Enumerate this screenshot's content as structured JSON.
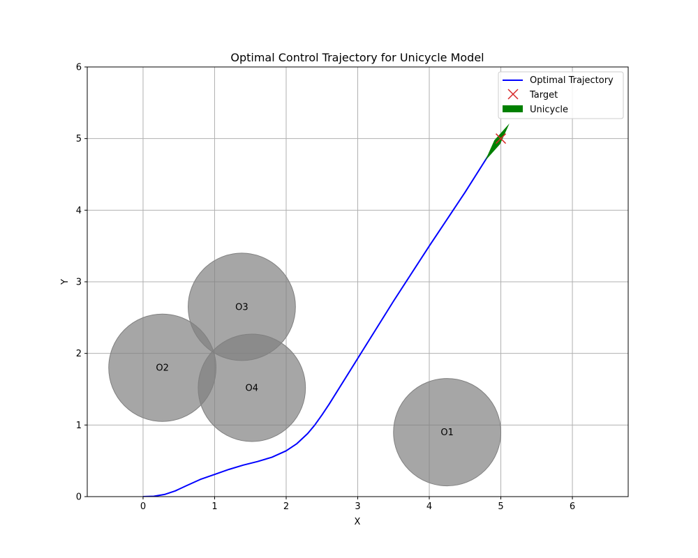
{
  "chart_data": {
    "type": "line",
    "title": "Optimal Control Trajectory for Unicycle Model",
    "xlabel": "X",
    "ylabel": "Y",
    "xlim": [
      -0.78,
      6.78
    ],
    "ylim": [
      0,
      6
    ],
    "xticks": [
      "0",
      "1",
      "2",
      "3",
      "4",
      "5",
      "6"
    ],
    "yticks": [
      "0",
      "1",
      "2",
      "3",
      "4",
      "5",
      "6"
    ],
    "grid": true,
    "legend_position": "top-right",
    "legend": {
      "trajectory": "Optimal Trajectory",
      "target": "Target",
      "unicycle": "Unicycle"
    },
    "trajectory": {
      "color": "#0000ff",
      "points": [
        [
          0,
          0
        ],
        [
          0.15,
          0.005
        ],
        [
          0.3,
          0.03
        ],
        [
          0.45,
          0.08
        ],
        [
          0.6,
          0.15
        ],
        [
          0.8,
          0.24
        ],
        [
          1.0,
          0.31
        ],
        [
          1.2,
          0.38
        ],
        [
          1.4,
          0.44
        ],
        [
          1.6,
          0.49
        ],
        [
          1.8,
          0.55
        ],
        [
          2.0,
          0.64
        ],
        [
          2.15,
          0.74
        ],
        [
          2.3,
          0.88
        ],
        [
          2.4,
          1.0
        ],
        [
          2.5,
          1.14
        ],
        [
          2.6,
          1.29
        ],
        [
          3.0,
          1.93
        ],
        [
          3.5,
          2.73
        ],
        [
          4.0,
          3.5
        ],
        [
          4.5,
          4.25
        ],
        [
          4.88,
          4.85
        ],
        [
          5.0,
          5.0
        ]
      ]
    },
    "target": {
      "x": 5.0,
      "y": 5.0,
      "color": "#d62728"
    },
    "unicycle": {
      "x": 4.95,
      "y": 4.95,
      "heading_deg": 57,
      "color": "#008000"
    },
    "obstacles": [
      {
        "label": "O1",
        "x": 4.25,
        "y": 0.9,
        "r": 0.75
      },
      {
        "label": "O2",
        "x": 0.27,
        "y": 1.8,
        "r": 0.75
      },
      {
        "label": "O3",
        "x": 1.38,
        "y": 2.65,
        "r": 0.75
      },
      {
        "label": "O4",
        "x": 1.52,
        "y": 1.52,
        "r": 0.75
      }
    ],
    "obstacle_color": "#808080"
  }
}
